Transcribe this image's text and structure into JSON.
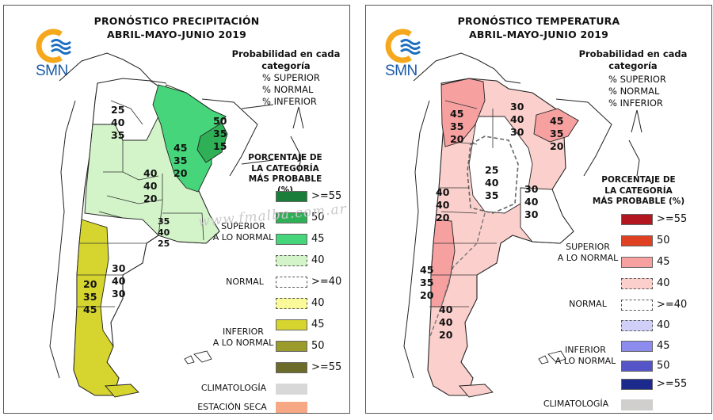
{
  "colors": {
    "precip": {
      "superior_55": "#1b7d3a",
      "superior_50": "#2fb056",
      "superior_45": "#46d57a",
      "superior_40": "#d3f3c9",
      "normal": "#ffffff",
      "inferior_40": "#fafa9a",
      "inferior_45": "#d6d42e",
      "inferior_50": "#9b9b2c",
      "inferior_55": "#6b6b2a",
      "climatologia": "#d8d8d8",
      "estacion_seca": "#f6a884"
    },
    "temp": {
      "superior_55": "#b3161e",
      "superior_50": "#e04022",
      "superior_45": "#f6a0a0",
      "superior_40": "#fbd0cc",
      "normal": "#ffffff",
      "inferior_40": "#cfcff8",
      "inferior_45": "#8c8cef",
      "inferior_50": "#5555c8",
      "inferior_55": "#1c2a8e",
      "climatologia": "#d0cfcd"
    }
  },
  "watermark": "www.fmalba.com.ar",
  "left": {
    "title_line1": "PRONÓSTICO PRECIPITACIÓN",
    "title_line2": "ABRIL-MAYO-JUNIO 2019",
    "logo_text": "SMN",
    "prob_title_line1": "Probabilidad en cada",
    "prob_title_line2": "categoría",
    "prob_items": [
      "% SUPERIOR",
      "% NORMAL",
      "% INFERIOR"
    ],
    "pct_title": [
      "PORCENTAJE DE",
      "LA CATEGORÍA",
      "MÁS PROBABLE (%)"
    ],
    "legend": [
      ">=55",
      "50",
      "45",
      "40",
      ">=40",
      "40",
      "45",
      "50",
      ">=55",
      "",
      ""
    ],
    "groups": {
      "superior": [
        "SUPERIOR",
        "A LO NORMAL"
      ],
      "normal": "NORMAL",
      "inferior": [
        "INFERIOR",
        "A LO NORMAL"
      ],
      "climatologia": "CLIMATOLOGÍA",
      "estacion_seca": "ESTACIÓN SECA"
    },
    "map_labels": [
      [
        "25",
        "40",
        "35"
      ],
      [
        "50",
        "35",
        "15"
      ],
      [
        "45",
        "35",
        "20"
      ],
      [
        "40",
        "40",
        "20"
      ],
      [
        "35",
        "40",
        "25"
      ],
      [
        "30",
        "40",
        "30"
      ],
      [
        "20",
        "35",
        "45"
      ]
    ]
  },
  "right": {
    "title_line1": "PRONÓSTICO TEMPERATURA",
    "title_line2": "ABRIL-MAYO-JUNIO 2019",
    "logo_text": "SMN",
    "prob_title_line1": "Probabilidad en cada",
    "prob_title_line2": "categoría",
    "prob_items": [
      "% SUPERIOR",
      "% NORMAL",
      "% INFERIOR"
    ],
    "pct_title": [
      "PORCENTAJE DE",
      "LA CATEGORÍA",
      "MÁS PROBABLE (%)"
    ],
    "legend": [
      ">=55",
      "50",
      "45",
      "40",
      ">=40",
      "40",
      "45",
      "50",
      ">=55",
      ""
    ],
    "groups": {
      "superior": [
        "SUPERIOR",
        "A LO NORMAL"
      ],
      "normal": "NORMAL",
      "inferior": [
        "INFERIOR",
        "A LO NORMAL"
      ],
      "climatologia": "CLIMATOLOGÍA"
    },
    "map_labels": [
      [
        "45",
        "35",
        "20"
      ],
      [
        "30",
        "40",
        "30"
      ],
      [
        "45",
        "35",
        "20"
      ],
      [
        "25",
        "40",
        "35"
      ],
      [
        "40",
        "40",
        "20"
      ],
      [
        "30",
        "40",
        "30"
      ],
      [
        "45",
        "35",
        "20"
      ],
      [
        "40",
        "40",
        "20"
      ]
    ]
  }
}
